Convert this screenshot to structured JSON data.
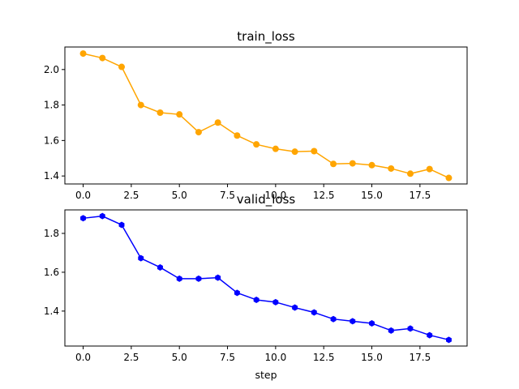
{
  "chart_data": [
    {
      "type": "line",
      "title": "train_loss",
      "xlabel": "",
      "ylabel": "",
      "color": "#ffa500",
      "marker": "circle",
      "x": [
        0,
        1,
        2,
        3,
        4,
        5,
        6,
        7,
        8,
        9,
        10,
        11,
        12,
        13,
        14,
        15,
        16,
        17,
        18,
        19
      ],
      "values": [
        2.09,
        2.065,
        2.015,
        1.8,
        1.757,
        1.747,
        1.647,
        1.701,
        1.628,
        1.578,
        1.553,
        1.537,
        1.54,
        1.468,
        1.471,
        1.461,
        1.442,
        1.413,
        1.439,
        1.389
      ],
      "xlim": [
        -0.95,
        19.95
      ],
      "ylim": [
        1.355,
        2.127
      ],
      "xticks": [
        0.0,
        2.5,
        5.0,
        7.5,
        10.0,
        12.5,
        15.0,
        17.5
      ],
      "xtick_labels": [
        "0.0",
        "2.5",
        "5.0",
        "7.5",
        "10.0",
        "12.5",
        "15.0",
        "17.5"
      ],
      "yticks": [
        1.4,
        1.6,
        1.8,
        2.0
      ],
      "ytick_labels": [
        "1.4",
        "1.6",
        "1.8",
        "2.0"
      ],
      "grid": false,
      "legend": false
    },
    {
      "type": "line",
      "title": "valid_loss",
      "xlabel": "step",
      "ylabel": "",
      "color": "#0000ff",
      "marker": "hexagon",
      "x": [
        0,
        1,
        2,
        3,
        4,
        5,
        6,
        7,
        8,
        9,
        10,
        11,
        12,
        13,
        14,
        15,
        16,
        17,
        18,
        19
      ],
      "values": [
        1.878,
        1.889,
        1.844,
        1.672,
        1.625,
        1.567,
        1.567,
        1.572,
        1.494,
        1.458,
        1.446,
        1.418,
        1.393,
        1.359,
        1.348,
        1.337,
        1.3,
        1.31,
        1.276,
        1.252
      ],
      "xlim": [
        -0.95,
        19.95
      ],
      "ylim": [
        1.22,
        1.921
      ],
      "xticks": [
        0.0,
        2.5,
        5.0,
        7.5,
        10.0,
        12.5,
        15.0,
        17.5
      ],
      "xtick_labels": [
        "0.0",
        "2.5",
        "5.0",
        "7.5",
        "10.0",
        "12.5",
        "15.0",
        "17.5"
      ],
      "yticks": [
        1.4,
        1.6,
        1.8
      ],
      "ytick_labels": [
        "1.4",
        "1.6",
        "1.8"
      ],
      "grid": false,
      "legend": false
    }
  ]
}
